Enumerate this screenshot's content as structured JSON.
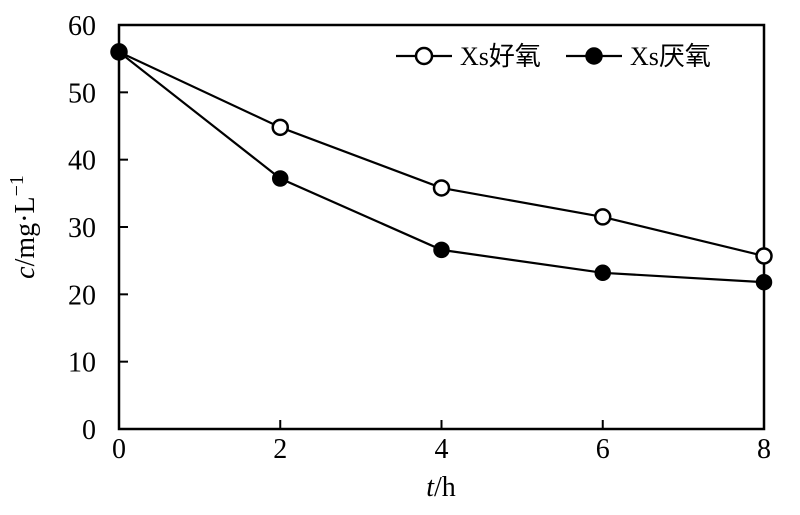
{
  "chart_data": {
    "type": "line",
    "x": [
      0,
      2,
      4,
      6,
      8
    ],
    "series": [
      {
        "name": "Xs好氧",
        "marker": "open-circle",
        "values": [
          56,
          44.8,
          35.8,
          31.5,
          25.7
        ]
      },
      {
        "name": "Xs厌氧",
        "marker": "filled-circle",
        "values": [
          56,
          37.2,
          26.6,
          23.2,
          21.8
        ]
      }
    ],
    "xlabel": {
      "italic": "t",
      "rest": "/h"
    },
    "ylabel": {
      "italic": "c",
      "rest": "/mg·L",
      "sup": "−1"
    },
    "xlim": [
      0,
      8
    ],
    "ylim": [
      0,
      60
    ],
    "xticks": [
      0,
      2,
      4,
      6,
      8
    ],
    "yticks": [
      0,
      10,
      20,
      30,
      40,
      50,
      60
    ],
    "grid": false,
    "legend_position": "top-inside",
    "line_color": "#000000",
    "background_color": "#ffffff"
  }
}
